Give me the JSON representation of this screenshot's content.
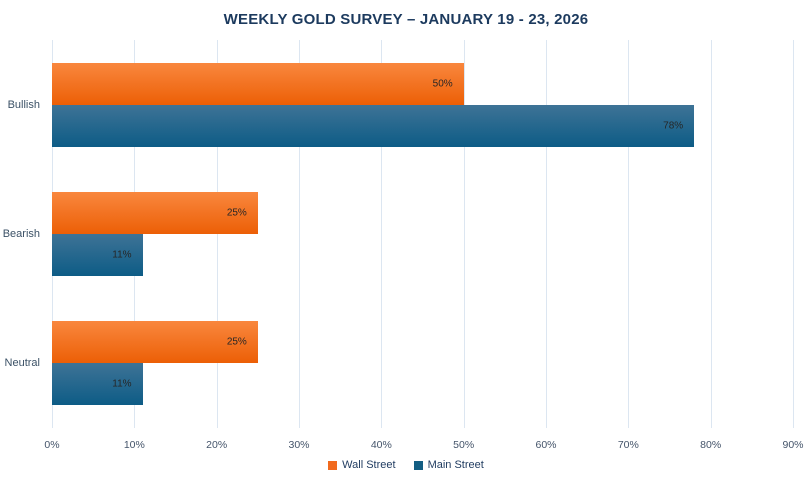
{
  "title": "WEEKLY GOLD SURVEY – JANUARY 19 - 23, 2026",
  "chart_data": {
    "type": "bar",
    "orientation": "horizontal",
    "title": "WEEKLY GOLD SURVEY – JANUARY 19 - 23, 2026",
    "categories": [
      "Bullish",
      "Bearish",
      "Neutral"
    ],
    "series": [
      {
        "name": "Wall Street",
        "values": [
          50,
          25,
          25
        ],
        "color": "#F16A1E",
        "gradient_top": "#F9873E",
        "gradient_bottom": "#EC5F06"
      },
      {
        "name": "Main Street",
        "values": [
          78,
          11,
          11
        ],
        "color": "#135E83",
        "gradient_top": "#3E7396",
        "gradient_bottom": "#0D5C86"
      }
    ],
    "data_label_format": "{value}%",
    "data_labels": [
      [
        "50%",
        "25%",
        "25%"
      ],
      [
        "78%",
        "11%",
        "11%"
      ]
    ],
    "xlim": [
      0,
      90
    ],
    "x_ticks": [
      "0%",
      "10%",
      "20%",
      "30%",
      "40%",
      "50%",
      "60%",
      "70%",
      "80%",
      "90%"
    ],
    "xlabel": "",
    "ylabel": "",
    "grid": "vertical-only",
    "legend_position": "bottom-center"
  },
  "colors": {
    "background": "#FFFFFF",
    "title_text": "#1C3A5E",
    "axis_tick_text": "#44546A",
    "category_label_text": "#3B5166",
    "data_label_text": "#262626",
    "gridline": "#DCE6F1",
    "legend_text": "#1E3A5F"
  }
}
